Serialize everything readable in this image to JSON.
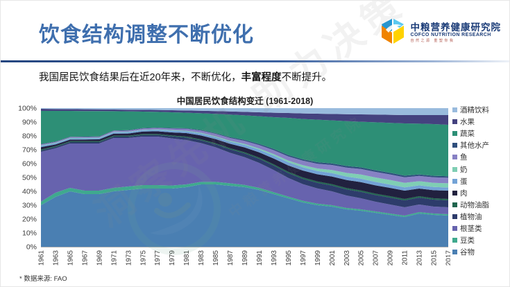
{
  "slide": {
    "title": "饮食结构调整不断优化",
    "subtitle": {
      "prefix": "我国居民饮食结果后在近20年来，不断优化，",
      "bold": "丰富程度",
      "suffix": "不断提升。"
    },
    "footnote": "* 数据来源: FAO"
  },
  "logo": {
    "cn": "中粮营养健康研究院",
    "en": "COFCO NUTRITION RESEARCH",
    "tagline": "自然之源 重塑你我"
  },
  "watermark": {
    "line1": "洞察先机 助力决策",
    "line2": "中粮营养健康研究院"
  },
  "colors": {
    "title_blue": "#3f6fae",
    "divider_navy": "#24457f",
    "axis_text": "#3a3a3a"
  },
  "chart_data": {
    "type": "area",
    "stacked": true,
    "normalized_percent": true,
    "title": "中国居民饮食结构变迁 (1961-2018)",
    "x": [
      1961,
      1963,
      1965,
      1967,
      1969,
      1971,
      1973,
      1975,
      1977,
      1979,
      1981,
      1983,
      1985,
      1987,
      1989,
      1991,
      1993,
      1995,
      1997,
      1999,
      2001,
      2003,
      2005,
      2007,
      2009,
      2011,
      2013,
      2015,
      2017
    ],
    "y_ticks": [
      "0%",
      "10%",
      "20%",
      "30%",
      "40%",
      "50%",
      "60%",
      "70%",
      "80%",
      "90%",
      "100%"
    ],
    "ylim": [
      0,
      100
    ],
    "xlabel": "",
    "ylabel": "",
    "grid": false,
    "legend_position": "right",
    "legend_order": "top-of-stack-first",
    "series": [
      {
        "name": "cereals",
        "label": "谷物",
        "color": "#4a7fb2",
        "values": [
          30,
          36,
          40,
          38,
          38,
          40,
          41,
          42,
          42,
          42,
          43,
          45,
          45,
          44,
          43,
          41,
          38,
          35,
          32,
          30,
          29,
          27,
          26,
          24.5,
          23,
          21.5,
          24,
          23,
          22.5
        ]
      },
      {
        "name": "beans",
        "label": "豆类",
        "color": "#3fa98e",
        "values": [
          2.5,
          3,
          2.5,
          2.5,
          2.5,
          2.5,
          2.5,
          2.5,
          2.5,
          2.2,
          2,
          1.8,
          1.8,
          1.8,
          1.6,
          1.5,
          1.4,
          1.2,
          1.2,
          1.1,
          1,
          1,
          1,
          1,
          1,
          1,
          1,
          1,
          1
        ]
      },
      {
        "name": "tubers",
        "label": "根茎类",
        "color": "#6763ae",
        "values": [
          36,
          32,
          32,
          34,
          34,
          36,
          35,
          35,
          35,
          34,
          32,
          28,
          25,
          22,
          20,
          18,
          16,
          13.5,
          12,
          11,
          10,
          9,
          8,
          7,
          6.5,
          6,
          5.5,
          5,
          5
        ]
      },
      {
        "name": "vegetable-oil",
        "label": "植物油",
        "color": "#2d3c6b",
        "values": [
          1,
          1,
          1,
          1,
          1,
          1,
          1,
          1.2,
          1.2,
          1.5,
          1.8,
          2,
          2.2,
          2.5,
          2.8,
          3,
          3.2,
          3.5,
          3.8,
          4,
          4.2,
          4.4,
          4.6,
          4.8,
          5,
          5,
          5,
          5,
          5
        ]
      },
      {
        "name": "animal-fat",
        "label": "动物油脂",
        "color": "#20654e",
        "values": [
          0.6,
          0.6,
          0.6,
          0.6,
          0.6,
          0.6,
          0.6,
          0.6,
          0.6,
          0.6,
          0.7,
          0.7,
          0.7,
          0.8,
          0.8,
          0.8,
          0.9,
          0.9,
          1,
          1,
          1,
          1,
          1,
          1,
          1,
          1,
          1,
          1,
          1
        ]
      },
      {
        "name": "meat",
        "label": "肉",
        "color": "#21213f",
        "values": [
          1.8,
          1.2,
          1.2,
          1.3,
          1.4,
          1.5,
          1.6,
          1.8,
          2,
          2.2,
          2.5,
          2.8,
          3,
          3.2,
          3.5,
          3.8,
          4.2,
          4.6,
          5,
          5.2,
          5.5,
          5.8,
          6,
          6,
          6,
          6,
          5.5,
          5.8,
          6
        ]
      },
      {
        "name": "egg",
        "label": "蛋",
        "color": "#73a3d6",
        "values": [
          1,
          0.9,
          0.9,
          0.9,
          0.9,
          1,
          1,
          1,
          1.1,
          1.2,
          1.3,
          1.4,
          1.5,
          1.6,
          1.8,
          2,
          2.2,
          2.3,
          2.4,
          2.4,
          2.5,
          2.5,
          2.5,
          2.5,
          2.4,
          2.4,
          2.3,
          2.3,
          2.3
        ]
      },
      {
        "name": "milk",
        "label": "奶",
        "color": "#7fceb4",
        "values": [
          0.3,
          0.3,
          0.3,
          0.3,
          0.3,
          0.3,
          0.3,
          0.3,
          0.3,
          0.4,
          0.4,
          0.5,
          0.5,
          0.6,
          0.7,
          0.8,
          1,
          1.2,
          1.5,
          1.8,
          2.2,
          2.6,
          3,
          3.2,
          3.3,
          3.2,
          3,
          3,
          3
        ]
      },
      {
        "name": "fish",
        "label": "鱼",
        "color": "#8781c4",
        "values": [
          0.6,
          0.6,
          0.6,
          0.6,
          0.6,
          0.7,
          0.8,
          0.9,
          1,
          1.2,
          1.4,
          1.6,
          1.8,
          2,
          2.2,
          2.5,
          2.8,
          3,
          3.2,
          3.4,
          3.6,
          3.8,
          4,
          4,
          4,
          4,
          3.8,
          4,
          4
        ]
      },
      {
        "name": "other-aquatic",
        "label": "其他水产",
        "color": "#2f4f7d",
        "values": [
          0.3,
          0.3,
          0.3,
          0.3,
          0.3,
          0.3,
          0.3,
          0.3,
          0.3,
          0.4,
          0.4,
          0.5,
          0.5,
          0.6,
          0.7,
          0.8,
          0.9,
          1,
          1,
          1.1,
          1.1,
          1.2,
          1.2,
          1.2,
          1.2,
          1.2,
          1.1,
          1.1,
          1.1
        ]
      },
      {
        "name": "vegetables",
        "label": "蔬菜",
        "color": "#2d8f76",
        "values": [
          23.9,
          22.1,
          18.6,
          18.4,
          18.3,
          13.9,
          13.6,
          11.9,
          11.3,
          11.3,
          11.2,
          12,
          13.9,
          16.3,
          17.7,
          20,
          22.9,
          26.8,
          29.1,
          30.7,
          31.1,
          32.3,
          32.9,
          34.6,
          36,
          37.7,
          36.6,
          37.3,
          37.1
        ]
      },
      {
        "name": "fruit",
        "label": "水果",
        "color": "#44427f",
        "values": [
          1.5,
          1.4,
          1.3,
          1.3,
          1.2,
          1.2,
          1.2,
          1.3,
          1.4,
          1.5,
          1.6,
          1.8,
          2,
          2.2,
          2.5,
          2.8,
          3.2,
          3.5,
          4,
          4.3,
          4.6,
          5,
          5.3,
          5.6,
          5.8,
          6,
          6.2,
          6.5,
          7
        ]
      },
      {
        "name": "alcohol",
        "label": "酒精饮料",
        "color": "#99bbdd",
        "values": [
          0.5,
          0.6,
          0.7,
          0.8,
          0.9,
          1,
          1.1,
          1.2,
          1.3,
          1.5,
          1.7,
          1.9,
          2.1,
          2.4,
          2.7,
          3,
          3.3,
          3.5,
          3.8,
          4,
          4.2,
          4.4,
          4.5,
          4.6,
          4.8,
          5,
          5,
          5,
          5
        ]
      }
    ]
  }
}
